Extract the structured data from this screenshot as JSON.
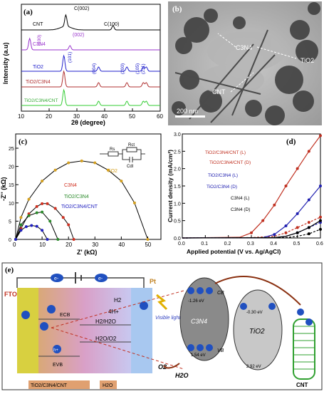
{
  "figure": {
    "panel_a": {
      "tag": "(a)",
      "xlabel": "2θ (degree)",
      "ylabel": "Intensity (a.u)",
      "xticks": [
        "10",
        "20",
        "30",
        "40",
        "50",
        "60"
      ],
      "series_labels": [
        "CNT",
        "C3N4",
        "TiO2",
        "TiO2/C3N4",
        "TiO2/C3N4/CNT"
      ],
      "peaks": [
        "C(002)",
        "(002)",
        "C(100)",
        "(100)",
        "(101)",
        "(004)",
        "(200)",
        "(105)",
        "(211)"
      ]
    },
    "panel_b": {
      "tag": "(b)",
      "labels": [
        "C3N4",
        "TiO2",
        "CNT"
      ],
      "scale_bar": "200 nm"
    },
    "panel_c": {
      "tag": "(c)",
      "xlabel": "Z' (kΩ)",
      "ylabel": "-Z'' (kΩ)",
      "xticks": [
        "0",
        "10",
        "20",
        "30",
        "40",
        "50"
      ],
      "yticks": [
        "0",
        "5",
        "10",
        "15",
        "20",
        "25"
      ],
      "series_labels": [
        "TiO2",
        "C3N4",
        "TiO2/C3N4",
        "TiO2/C3N4/CNT"
      ],
      "circuit": [
        "Rs",
        "Rct",
        "Cdl"
      ]
    },
    "panel_d": {
      "tag": "(d)",
      "xlabel": "Applied potential (V vs. Ag/AgCl)",
      "ylabel": "Current density (mA/cm²)",
      "xticks": [
        "0.0",
        "0.1",
        "0.2",
        "0.3",
        "0.4",
        "0.5",
        "0.6"
      ],
      "yticks": [
        "0.0",
        "0.5",
        "1.0",
        "1.5",
        "2.0",
        "2.5",
        "3.0"
      ],
      "series_labels": [
        "TiO2/C3N4/CNT (L)",
        "TiO2/C3N4/CNT (D)",
        "TiO2/C3N4 (L)",
        "TiO2/C3N4 (D)",
        "C3N4 (L)",
        "C3N4 (D)"
      ]
    },
    "panel_e": {
      "tag": "(e)",
      "labels": [
        "FTO",
        "Pt",
        "e-",
        "ECB",
        "EVB",
        "h+",
        "H2",
        "4H+",
        "H2/H2O",
        "H2O/O2",
        "O2",
        "H2O",
        "Visible light",
        "C3N4",
        "TiO2",
        "CNT",
        "CB",
        "VB",
        "-1.26 eV",
        "1.54 eV",
        "-0.30 eV",
        "2.92 eV"
      ],
      "legend": [
        "TiO2/C3N4/CNT",
        "H2O"
      ]
    }
  },
  "chart_data": [
    {
      "type": "line",
      "title": "(a)",
      "xlabel": "2θ (degree)",
      "ylabel": "Intensity (a.u)",
      "xlim": [
        10,
        60
      ],
      "series": [
        {
          "name": "CNT",
          "peaks_at": [
            26,
            43
          ]
        },
        {
          "name": "C3N4",
          "peaks_at": [
            13,
            27.5
          ]
        },
        {
          "name": "TiO2",
          "peaks_at": [
            25.3,
            37.8,
            48,
            53.9,
            55
          ]
        },
        {
          "name": "TiO2/C3N4",
          "peaks_at": [
            25.3,
            37.8,
            48,
            53.9,
            55
          ]
        },
        {
          "name": "TiO2/C3N4/CNT",
          "peaks_at": [
            25.3,
            37.8,
            48,
            53.9,
            55
          ]
        }
      ]
    },
    {
      "type": "scatter",
      "title": "(c)",
      "xlabel": "Z' (kΩ)",
      "ylabel": "-Z'' (kΩ)",
      "xlim": [
        0,
        55
      ],
      "ylim": [
        0,
        25
      ],
      "series": [
        {
          "name": "TiO2",
          "x": [
            0,
            2,
            5,
            10,
            15,
            20,
            25,
            30,
            35,
            40,
            45,
            50
          ],
          "y": [
            0,
            6,
            11,
            16,
            19,
            21,
            21.5,
            21,
            19,
            16,
            10,
            0
          ]
        },
        {
          "name": "C3N4",
          "x": [
            0,
            2,
            5,
            8,
            10,
            12,
            15,
            18,
            20,
            22
          ],
          "y": [
            0,
            3,
            7,
            9,
            9.8,
            9.8,
            8.5,
            6,
            4,
            0
          ]
        },
        {
          "name": "TiO2/C3N4",
          "x": [
            0,
            2,
            5,
            8,
            10,
            13,
            16
          ],
          "y": [
            0,
            4,
            6.5,
            7.3,
            7.5,
            5,
            0
          ]
        },
        {
          "name": "TiO2/C3N4/CNT",
          "x": [
            0,
            2,
            4,
            6,
            8,
            10,
            12
          ],
          "y": [
            0,
            2.5,
            3.5,
            3.8,
            3.6,
            2.5,
            0
          ]
        }
      ]
    },
    {
      "type": "line",
      "title": "(d)",
      "xlabel": "Applied potential (V vs. Ag/AgCl)",
      "ylabel": "Current density (mA/cm²)",
      "xlim": [
        0,
        0.6
      ],
      "ylim": [
        0,
        3
      ],
      "series": [
        {
          "name": "TiO2/C3N4/CNT (L)",
          "x": [
            0,
            0.25,
            0.3,
            0.35,
            0.4,
            0.45,
            0.5,
            0.55,
            0.6
          ],
          "y": [
            0,
            0.02,
            0.15,
            0.5,
            0.95,
            1.5,
            2.0,
            2.5,
            2.95
          ]
        },
        {
          "name": "TiO2/C3N4/CNT (D)",
          "x": [
            0,
            0.3,
            0.4,
            0.45,
            0.5,
            0.55,
            0.6
          ],
          "y": [
            0,
            0.01,
            0.05,
            0.15,
            0.3,
            0.45,
            0.6
          ]
        },
        {
          "name": "TiO2/C3N4 (L)",
          "x": [
            0,
            0.35,
            0.4,
            0.45,
            0.5,
            0.55,
            0.6
          ],
          "y": [
            0,
            0.01,
            0.1,
            0.35,
            0.7,
            1.1,
            1.5
          ]
        },
        {
          "name": "TiO2/C3N4 (D)",
          "x": [
            0,
            0.4,
            0.45,
            0.5,
            0.55,
            0.6
          ],
          "y": [
            0,
            0.01,
            0.05,
            0.15,
            0.3,
            0.45
          ]
        },
        {
          "name": "C3N4 (L)",
          "x": [
            0,
            0.4,
            0.45,
            0.5,
            0.55,
            0.6
          ],
          "y": [
            0,
            0.01,
            0.05,
            0.15,
            0.3,
            0.5
          ]
        },
        {
          "name": "C3N4 (D)",
          "x": [
            0,
            0.45,
            0.5,
            0.55,
            0.6
          ],
          "y": [
            0,
            0.01,
            0.05,
            0.12,
            0.25
          ]
        }
      ]
    }
  ]
}
